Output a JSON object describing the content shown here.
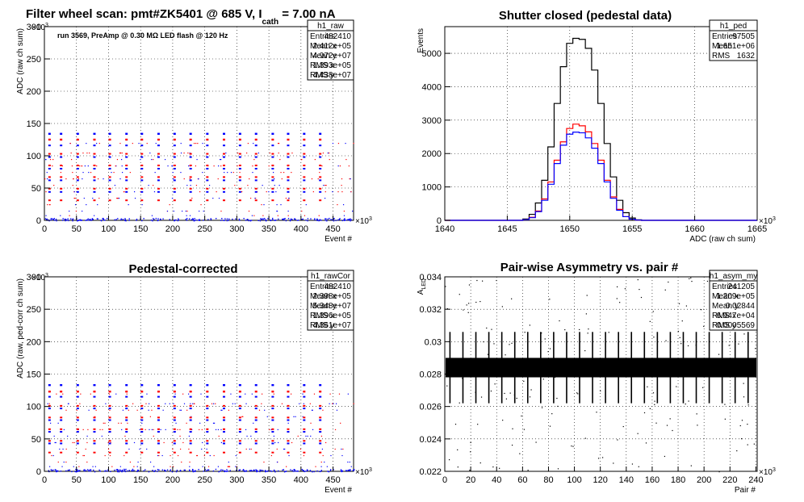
{
  "colors": {
    "black": "#000000",
    "red": "#ff0000",
    "blue": "#0000ff"
  },
  "chart_data": [
    {
      "id": "raw",
      "type": "scatter",
      "title": "Filter wheel scan: pmt#ZK5401 @   685 V, I",
      "title_sub": "cath",
      "title_tail": " = 7.00 nA",
      "annotation": "run 3569, PreAmp @ 0.30 MΩ   LED flash @  120 Hz",
      "xlabel": "Event #",
      "ylabel": "ADC (raw ch sum)",
      "x_exponent_label": "×10",
      "x_exponent": "3",
      "y_exponent_label": "×10",
      "y_exponent": "3",
      "xlim": [
        0,
        482
      ],
      "ylim": [
        0,
        300
      ],
      "xticks": [
        "0",
        "50",
        "100",
        "150",
        "200",
        "250",
        "300",
        "350",
        "400",
        "450"
      ],
      "yticks": [
        "0",
        "50",
        "100",
        "150",
        "200",
        "250",
        "300"
      ],
      "grid": true,
      "stats": {
        "name": "h1_raw",
        "rows": [
          {
            "label": "Entries",
            "value": "482410"
          },
          {
            "label": "Mean x",
            "value": "2.412e+05"
          },
          {
            "label": "Mean y",
            "value": "4.972e+07"
          },
          {
            "label": "RMS x",
            "value": "1.393e+05"
          },
          {
            "label": "RMS y",
            "value": "4.438e+07"
          }
        ]
      },
      "series": [
        {
          "color": "blue",
          "x": [
            8,
            26,
            52,
            78,
            102,
            128,
            152,
            178,
            203,
            228,
            254,
            280,
            305,
            330,
            356,
            380,
            405,
            430
          ],
          "y": [
            134,
            134,
            134,
            134,
            134,
            134,
            134,
            134,
            134,
            134,
            134,
            134,
            134,
            134,
            134,
            134,
            134,
            134
          ]
        },
        {
          "color": "red",
          "x": [
            8,
            26,
            52,
            78,
            102,
            128,
            152,
            178,
            203,
            228,
            254,
            280,
            305,
            330,
            356,
            380,
            405,
            430
          ],
          "y": [
            125,
            125,
            125,
            125,
            125,
            125,
            125,
            125,
            125,
            125,
            125,
            125,
            125,
            125,
            125,
            125,
            125,
            125
          ]
        }
      ]
    },
    {
      "id": "ped",
      "type": "line",
      "title": "Shutter closed (pedestal data)",
      "xlabel": "ADC (raw ch sum)",
      "ylabel": "Events",
      "x_exponent_label": "×10",
      "x_exponent": "3",
      "xlim": [
        1640,
        1665
      ],
      "ylim": [
        0,
        5800
      ],
      "xticks": [
        "1640",
        "1645",
        "1650",
        "1655",
        "1660",
        "1665"
      ],
      "yticks": [
        "0",
        "1000",
        "2000",
        "3000",
        "4000",
        "5000"
      ],
      "grid": true,
      "stats": {
        "name": "h1_ped",
        "rows": [
          {
            "label": "Entries",
            "value": "97505"
          },
          {
            "label": "Mean",
            "value": "1.651e+06"
          },
          {
            "label": "RMS",
            "value": "1632"
          }
        ]
      },
      "series": [
        {
          "color": "black",
          "x": [
            1646,
            1646.5,
            1647,
            1647.5,
            1648,
            1648.5,
            1649,
            1649.5,
            1650,
            1650.5,
            1651,
            1651.5,
            1652,
            1652.5,
            1653,
            1653.5,
            1654,
            1654.5,
            1655,
            1655.5,
            1656
          ],
          "y": [
            0,
            40,
            180,
            520,
            1200,
            2200,
            3500,
            4600,
            5300,
            5450,
            5420,
            5150,
            4500,
            3500,
            2300,
            1300,
            600,
            230,
            70,
            15,
            0
          ]
        },
        {
          "color": "red",
          "x": [
            1646,
            1646.5,
            1647,
            1647.5,
            1648,
            1648.5,
            1649,
            1649.5,
            1650,
            1650.5,
            1651,
            1651.5,
            1652,
            1652.5,
            1653,
            1653.5,
            1654,
            1654.5,
            1655,
            1655.5,
            1656
          ],
          "y": [
            0,
            20,
            90,
            280,
            640,
            1150,
            1800,
            2350,
            2750,
            2880,
            2830,
            2650,
            2300,
            1800,
            1200,
            700,
            330,
            110,
            35,
            8,
            0
          ]
        },
        {
          "color": "blue",
          "x": [
            1646,
            1646.5,
            1647,
            1647.5,
            1648,
            1648.5,
            1649,
            1649.5,
            1650,
            1650.5,
            1651,
            1651.5,
            1652,
            1652.5,
            1653,
            1653.5,
            1654,
            1654.5,
            1655,
            1655.5,
            1656
          ],
          "y": [
            0,
            20,
            80,
            260,
            600,
            1080,
            1700,
            2250,
            2580,
            2640,
            2620,
            2470,
            2160,
            1700,
            1150,
            660,
            300,
            110,
            35,
            8,
            0
          ]
        }
      ]
    },
    {
      "id": "rawCor",
      "type": "scatter",
      "title": "Pedestal-corrected",
      "xlabel": "Event #",
      "ylabel": "ADC (raw, ped-corr ch sum)",
      "x_exponent_label": "×10",
      "x_exponent": "3",
      "y_exponent_label": "×10",
      "y_exponent": "3",
      "xlim": [
        0,
        482
      ],
      "ylim": [
        0,
        300
      ],
      "xticks": [
        "0",
        "50",
        "100",
        "150",
        "200",
        "250",
        "300",
        "350",
        "400",
        "450"
      ],
      "yticks": [
        "0",
        "50",
        "100",
        "150",
        "200",
        "250",
        "300"
      ],
      "grid": true,
      "stats": {
        "name": "h1_rawCor",
        "rows": [
          {
            "label": "Entries",
            "value": "482410"
          },
          {
            "label": "Mean x",
            "value": "2.398e+05"
          },
          {
            "label": "Mean y",
            "value": "5.348e+07"
          },
          {
            "label": "RMS x",
            "value": "1.396e+05"
          },
          {
            "label": "RMS y",
            "value": "4.361e+07"
          }
        ]
      },
      "series": [
        {
          "color": "blue",
          "x": [
            8,
            26,
            52,
            78,
            102,
            128,
            152,
            178,
            203,
            228,
            254,
            280,
            305,
            330,
            356,
            380,
            405,
            430
          ],
          "y": [
            133,
            133,
            133,
            133,
            133,
            133,
            133,
            133,
            133,
            133,
            133,
            133,
            133,
            133,
            133,
            133,
            133,
            133
          ]
        },
        {
          "color": "red",
          "x": [
            8,
            26,
            52,
            78,
            102,
            128,
            152,
            178,
            203,
            228,
            254,
            280,
            305,
            330,
            356,
            380,
            405,
            430
          ],
          "y": [
            123,
            123,
            123,
            123,
            123,
            123,
            123,
            123,
            123,
            123,
            123,
            123,
            123,
            123,
            123,
            123,
            123,
            123
          ]
        }
      ]
    },
    {
      "id": "asym",
      "type": "scatter",
      "title": "Pair-wise Asymmetry vs. pair #",
      "xlabel": "Pair #",
      "ylabel": "A",
      "ylabel_sub": "LED",
      "x_exponent_label": "×10",
      "x_exponent": "3",
      "xlim": [
        0,
        241
      ],
      "ylim": [
        0.022,
        0.034
      ],
      "xticks": [
        "0",
        "20",
        "40",
        "60",
        "80",
        "100",
        "120",
        "140",
        "160",
        "180",
        "200",
        "220",
        "240"
      ],
      "yticks": [
        "0.022",
        "0.024",
        "0.026",
        "0.028",
        "0.03",
        "0.032",
        "0.034"
      ],
      "grid": true,
      "stats": {
        "name": "h1_asym_my",
        "rows": [
          {
            "label": "Entries",
            "value": "241205"
          },
          {
            "label": "Mean x",
            "value": "1.209e+05"
          },
          {
            "label": "Mean y",
            "value": "0.02844"
          },
          {
            "label": "RMS x",
            "value": "6.947e+04"
          },
          {
            "label": "RMS y",
            "value": "0.0005569"
          }
        ]
      },
      "band_center": 0.0284,
      "band_halfwidth": 0.0006,
      "spikes_x": [
        4,
        14,
        24,
        34,
        44,
        54,
        64,
        74,
        84,
        94,
        104,
        114,
        124,
        134,
        144,
        154,
        164,
        174,
        184,
        194,
        204,
        214,
        224,
        234
      ],
      "series": [
        {
          "color": "black",
          "x": [
            0,
            241
          ],
          "y": [
            0.02844,
            0.02844
          ]
        }
      ]
    }
  ]
}
